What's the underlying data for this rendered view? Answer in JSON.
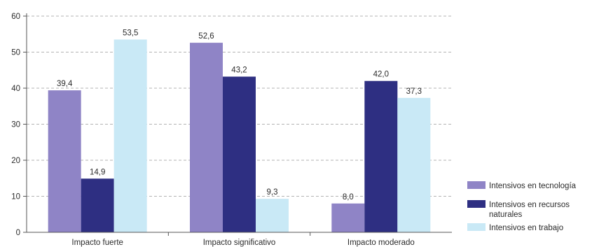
{
  "chart_data": {
    "type": "bar",
    "categories": [
      "Impacto fuerte",
      "Impacto significativo",
      "Impacto moderado"
    ],
    "series": [
      {
        "name": "Intensivos en tecnología",
        "color": "#8f84c6",
        "values": [
          39.4,
          52.6,
          8.0
        ],
        "labels": [
          "39,4",
          "52,6",
          "8,0"
        ]
      },
      {
        "name": "Intensivos en recursos naturales",
        "color": "#2e2f82",
        "values": [
          14.9,
          43.2,
          42.0
        ],
        "labels": [
          "14,9",
          "43,2",
          "42,0"
        ]
      },
      {
        "name": "Intensivos en trabajo",
        "color": "#c9e9f6",
        "values": [
          53.5,
          9.3,
          37.3
        ],
        "labels": [
          "53,5",
          "9,3",
          "37,3"
        ]
      }
    ],
    "y_ticks": [
      "0",
      "10",
      "20",
      "30",
      "40",
      "50",
      "60"
    ],
    "ylim": [
      0,
      60
    ],
    "grid": true,
    "legend_position": "right",
    "legend_lines": [
      [
        "Intensivos en tecnología"
      ],
      [
        "Intensivos en recursos",
        "naturales"
      ],
      [
        "Intensivos en trabajo"
      ]
    ],
    "title": "",
    "xlabel": "",
    "ylabel": ""
  }
}
